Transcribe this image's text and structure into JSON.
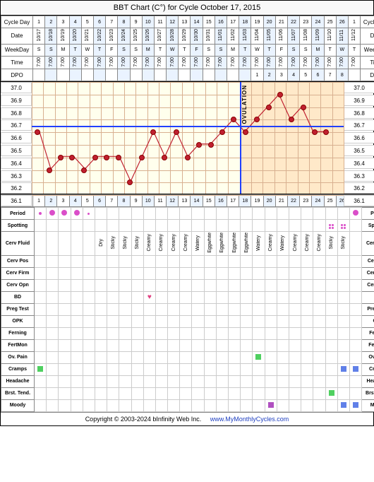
{
  "title": "BBT Chart (C°) for Cycle October 17, 2015",
  "labels": {
    "cycleDay": "Cycle Day",
    "date": "Date",
    "weekday": "WeekDay",
    "time": "Time",
    "dpo": "DPO",
    "period": "Period",
    "spotting": "Spotting",
    "cervFluid": "Cerv Fluid",
    "cervPos": "Cerv Pos",
    "cervFirm": "Cerv Firm",
    "cervOpn": "Cerv Opn",
    "bd": "BD",
    "pregTest": "Preg Test",
    "opk": "OPK",
    "ferning": "Ferning",
    "fertMon": "FertMon",
    "ovPain": "Ov. Pain",
    "cramps": "Cramps",
    "headache": "Headache",
    "brstTend": "Brst. Tend.",
    "moody": "Moody"
  },
  "footer": {
    "copyright": "Copyright © 2003-2024 bInfinity Web Inc.",
    "site": "www.MyMonthlyCycles.com"
  },
  "cycleDays": [
    1,
    2,
    3,
    4,
    5,
    6,
    7,
    8,
    9,
    10,
    11,
    12,
    13,
    14,
    15,
    16,
    17,
    18,
    19,
    20,
    21,
    22,
    23,
    24,
    25,
    26,
    1
  ],
  "dates": [
    "10/17",
    "10/18",
    "10/19",
    "10/20",
    "10/21",
    "10/22",
    "10/23",
    "10/24",
    "10/25",
    "10/26",
    "10/27",
    "10/28",
    "10/29",
    "10/30",
    "10/31",
    "11/01",
    "11/02",
    "11/03",
    "11/04",
    "11/05",
    "11/06",
    "11/07",
    "11/08",
    "11/09",
    "11/10",
    "11/11",
    "11/12"
  ],
  "weekdays": [
    "S",
    "S",
    "M",
    "T",
    "W",
    "T",
    "F",
    "S",
    "S",
    "M",
    "T",
    "W",
    "T",
    "F",
    "S",
    "S",
    "M",
    "T",
    "W",
    "T",
    "F",
    "S",
    "S",
    "M",
    "T",
    "W",
    "T"
  ],
  "times": [
    "7:00",
    "7:00",
    "7:00",
    "7:00",
    "7:00",
    "7:00",
    "7:00",
    "7:00",
    "7:00",
    "7:00",
    "7:00",
    "7:00",
    "7:00",
    "7:00",
    "7:00",
    "7:00",
    "7:00",
    "7:00",
    "7:00",
    "7:00",
    "7:00",
    "7:00",
    "7:00",
    "7:00",
    "7:00",
    "7:00",
    "7:00"
  ],
  "dpo": [
    "",
    "",
    "",
    "",
    "",
    "",
    "",
    "",
    "",
    "",
    "",
    "",
    "",
    "",
    "",
    "",
    "",
    "",
    "1",
    "2",
    "3",
    "4",
    "5",
    "6",
    "7",
    "8",
    ""
  ],
  "chart": {
    "ymin": 36.1,
    "ymax": 37.0,
    "ystep": 0.1,
    "coverline": 36.65,
    "ovulationDay": 18,
    "follicularEnd": 18,
    "temps": [
      36.6,
      36.3,
      36.4,
      36.4,
      36.3,
      36.4,
      36.4,
      36.4,
      36.2,
      36.4,
      36.6,
      36.4,
      36.6,
      36.4,
      36.5,
      36.5,
      36.6,
      36.7,
      36.6,
      36.7,
      36.8,
      36.9,
      36.7,
      36.8,
      36.6,
      36.6,
      null
    ],
    "pointColor": "#c02030",
    "lineColor": "#c02030",
    "bgFollicular": "rgba(255,255,220,0.5)",
    "bgLuteal": "rgba(255,200,120,0.4)"
  },
  "rows": {
    "period": [
      "sm",
      "lg",
      "lg",
      "lg",
      "tiny",
      "",
      "",
      "",
      "",
      "",
      "",
      "",
      "",
      "",
      "",
      "",
      "",
      "",
      "",
      "",
      "",
      "",
      "",
      "",
      "",
      "",
      "lg"
    ],
    "spotting": [
      "",
      "",
      "",
      "",
      "",
      "",
      "",
      "",
      "",
      "",
      "",
      "",
      "",
      "",
      "",
      "",
      "",
      "",
      "",
      "",
      "",
      "",
      "",
      "",
      "sp4",
      "sp4",
      ""
    ],
    "cervFluid": [
      "",
      "",
      "",
      "",
      "",
      "Dry",
      "Sticky",
      "Sticky",
      "Sticky",
      "Creamy",
      "Creamy",
      "Creamy",
      "Creamy",
      "Watery",
      "Eggwhite",
      "Eggwhite",
      "Eggwhite",
      "Eggwhite",
      "Watery",
      "Creamy",
      "Watery",
      "Creamy",
      "Creamy",
      "Creamy",
      "Sticky",
      "Sticky",
      ""
    ],
    "bd": [
      "",
      "",
      "",
      "",
      "",
      "",
      "",
      "",
      "",
      "heart",
      "",
      "",
      "",
      "",
      "",
      "",
      "",
      "",
      "",
      "",
      "",
      "",
      "",
      "",
      "",
      "",
      ""
    ],
    "ovPain": [
      "",
      "",
      "",
      "",
      "",
      "",
      "",
      "",
      "",
      "",
      "",
      "",
      "",
      "",
      "",
      "",
      "",
      "",
      "green",
      "",
      "",
      "",
      "",
      "",
      "",
      "",
      ""
    ],
    "cramps": [
      "green",
      "",
      "",
      "",
      "",
      "",
      "",
      "",
      "",
      "",
      "",
      "",
      "",
      "",
      "",
      "",
      "",
      "",
      "",
      "",
      "",
      "",
      "",
      "",
      "",
      "blue",
      "blue"
    ],
    "brstTend": [
      "",
      "",
      "",
      "",
      "",
      "",
      "",
      "",
      "",
      "",
      "",
      "",
      "",
      "",
      "",
      "",
      "",
      "",
      "",
      "",
      "",
      "",
      "",
      "",
      "green",
      "",
      ""
    ],
    "moody": [
      "",
      "",
      "",
      "",
      "",
      "",
      "",
      "",
      "",
      "",
      "",
      "",
      "",
      "",
      "",
      "",
      "",
      "",
      "",
      "purple",
      "",
      "",
      "",
      "",
      "",
      "blue",
      "blue"
    ]
  },
  "emptyRows": [
    "cervPos",
    "cervFirm",
    "cervOpn",
    "pregTest",
    "opk",
    "ferning",
    "fertMon",
    "headache"
  ]
}
